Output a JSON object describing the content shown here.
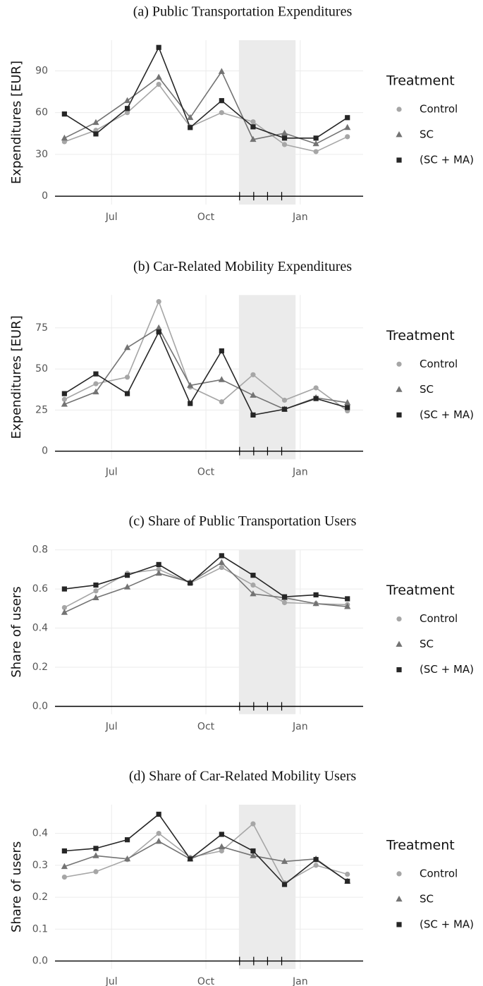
{
  "chart_data": [
    {
      "type": "line",
      "title": "(a) Public Transportation Expenditures",
      "y_label": "Expenditures [EUR]",
      "x": [
        5.5,
        6.5,
        7.5,
        8.5,
        9.5,
        10.5,
        11.5,
        12.5,
        13.5,
        14.5
      ],
      "xlim": [
        5.2,
        15.0
      ],
      "xticks": [
        {
          "value": 7,
          "label": "Jul"
        },
        {
          "value": 10,
          "label": "Oct"
        },
        {
          "value": 13,
          "label": "Jan"
        }
      ],
      "ylim": [
        -6,
        112
      ],
      "yticks": [
        0,
        30,
        60,
        90
      ],
      "grid": true,
      "hline": 0,
      "shaded": [
        11.05,
        12.85
      ],
      "rug": [
        11.07,
        11.52,
        11.96,
        12.41
      ],
      "legend_title": "Treatment",
      "legend": "right",
      "series": [
        {
          "name": "Control",
          "color": "#a6a6a6",
          "marker": "circle",
          "values": [
            39.1,
            47.3,
            60,
            80.3,
            49.8,
            60,
            53.4,
            37.1,
            32,
            42.7
          ]
        },
        {
          "name": "SC",
          "color": "#737373",
          "marker": "triangle",
          "values": [
            41.7,
            52.9,
            68.6,
            85.4,
            56.4,
            89.5,
            40.7,
            45.2,
            37.6,
            49.3
          ]
        },
        {
          "name": "(SC + MA)",
          "color": "#262626",
          "marker": "square",
          "values": [
            59,
            44.7,
            63,
            106.8,
            49.3,
            68.6,
            49.8,
            41.7,
            41.7,
            56.4
          ]
        }
      ]
    },
    {
      "type": "line",
      "title": "(b) Car-Related Mobility Expenditures",
      "y_label": "Expenditures [EUR]",
      "x": [
        5.5,
        6.5,
        7.5,
        8.5,
        9.5,
        10.5,
        11.5,
        12.5,
        13.5,
        14.5
      ],
      "xlim": [
        5.2,
        15.0
      ],
      "xticks": [
        {
          "value": 7,
          "label": "Jul"
        },
        {
          "value": 10,
          "label": "Oct"
        },
        {
          "value": 13,
          "label": "Jan"
        }
      ],
      "ylim": [
        -5,
        95
      ],
      "yticks": [
        0,
        25,
        50,
        75
      ],
      "grid": true,
      "hline": 0,
      "shaded": [
        11.05,
        12.85
      ],
      "rug": [
        11.07,
        11.52,
        11.96,
        12.41
      ],
      "legend_title": "Treatment",
      "legend": "right",
      "series": [
        {
          "name": "Control",
          "color": "#a6a6a6",
          "marker": "circle",
          "values": [
            31.5,
            41,
            45,
            91,
            39,
            30,
            46.5,
            31,
            38.5,
            24.5
          ]
        },
        {
          "name": "SC",
          "color": "#737373",
          "marker": "triangle",
          "values": [
            28.5,
            36,
            63,
            75,
            40,
            43.5,
            34,
            25.5,
            32.5,
            29.5
          ]
        },
        {
          "name": "(SC + MA)",
          "color": "#262626",
          "marker": "square",
          "values": [
            35,
            47,
            35,
            72.5,
            29,
            61,
            22,
            25.5,
            32,
            26.5
          ]
        }
      ]
    },
    {
      "type": "line",
      "title": "(c) Share of Public Transportation Users",
      "y_label": "Share of users",
      "x": [
        5.5,
        6.5,
        7.5,
        8.5,
        9.5,
        10.5,
        11.5,
        12.5,
        13.5,
        14.5
      ],
      "xlim": [
        5.2,
        15.0
      ],
      "xticks": [
        {
          "value": 7,
          "label": "Jul"
        },
        {
          "value": 10,
          "label": "Oct"
        },
        {
          "value": 13,
          "label": "Jan"
        }
      ],
      "ylim": [
        -0.04,
        0.8
      ],
      "yticks": [
        {
          "value": 0,
          "label": "0.0"
        },
        0.2,
        0.4,
        0.6,
        0.8
      ],
      "grid": true,
      "hline": 0,
      "shaded": [
        11.05,
        12.85
      ],
      "rug": [
        11.07,
        11.52,
        11.96,
        12.41
      ],
      "legend_title": "Treatment",
      "legend": "right",
      "series": [
        {
          "name": "Control",
          "color": "#a6a6a6",
          "marker": "circle",
          "values": [
            0.505,
            0.59,
            0.68,
            0.7,
            0.63,
            0.71,
            0.62,
            0.53,
            0.525,
            0.52
          ]
        },
        {
          "name": "SC",
          "color": "#737373",
          "marker": "triangle",
          "values": [
            0.48,
            0.555,
            0.61,
            0.68,
            0.635,
            0.735,
            0.575,
            0.555,
            0.525,
            0.51
          ]
        },
        {
          "name": "(SC + MA)",
          "color": "#262626",
          "marker": "square",
          "values": [
            0.6,
            0.62,
            0.67,
            0.725,
            0.63,
            0.77,
            0.67,
            0.56,
            0.57,
            0.55
          ]
        }
      ]
    },
    {
      "type": "line",
      "title": "(d) Share of Car-Related Mobility Users",
      "y_label": "Share of users",
      "x": [
        5.5,
        6.5,
        7.5,
        8.5,
        9.5,
        10.5,
        11.5,
        12.5,
        13.5,
        14.5
      ],
      "xlim": [
        5.2,
        15.0
      ],
      "xticks": [
        {
          "value": 7,
          "label": "Jul"
        },
        {
          "value": 10,
          "label": "Oct"
        },
        {
          "value": 13,
          "label": "Jan"
        }
      ],
      "ylim": [
        -0.025,
        0.49
      ],
      "yticks": [
        {
          "value": 0,
          "label": "0.0"
        },
        0.1,
        0.2,
        0.3,
        0.4
      ],
      "grid": true,
      "hline": 0,
      "shaded": [
        11.05,
        12.85
      ],
      "rug": [
        11.07,
        11.52,
        11.96,
        12.41
      ],
      "legend_title": "Treatment",
      "legend": "right",
      "series": [
        {
          "name": "Control",
          "color": "#a6a6a6",
          "marker": "circle",
          "values": [
            0.263,
            0.28,
            0.318,
            0.4,
            0.325,
            0.345,
            0.43,
            0.245,
            0.3,
            0.272
          ]
        },
        {
          "name": "SC",
          "color": "#737373",
          "marker": "triangle",
          "values": [
            0.296,
            0.33,
            0.32,
            0.375,
            0.32,
            0.358,
            0.33,
            0.312,
            0.32,
            0.25
          ]
        },
        {
          "name": "(SC + MA)",
          "color": "#262626",
          "marker": "square",
          "values": [
            0.345,
            0.353,
            0.38,
            0.46,
            0.32,
            0.397,
            0.345,
            0.24,
            0.318,
            0.25
          ]
        }
      ]
    }
  ]
}
